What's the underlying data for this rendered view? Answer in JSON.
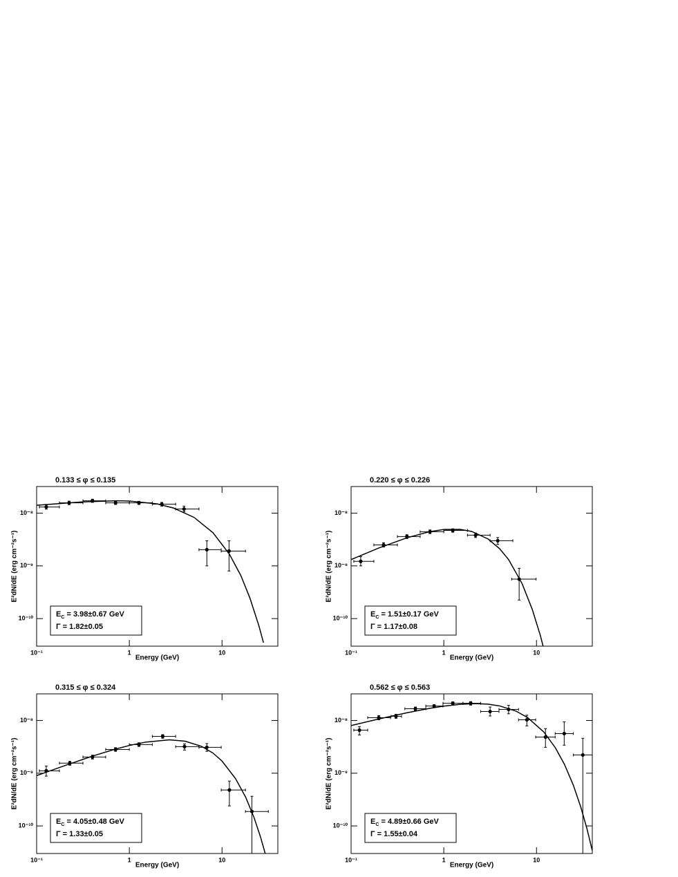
{
  "chart_data": [
    {
      "type": "scatter",
      "title": "0.133 ≤ φ ≤ 0.135",
      "x_label": "Energy (GeV)",
      "y_label": "E²dN/dE (erg cm⁻²s⁻¹)",
      "log_x": true,
      "log_y": true,
      "color": "#000000",
      "xlim": [
        0.1,
        40
      ],
      "ylim": [
        3e-11,
        3.2e-08
      ],
      "xticks": [
        {
          "value": 0.1,
          "label": "10⁻¹"
        },
        1,
        10
      ],
      "yticks": [
        {
          "value": 1e-10,
          "label": "10⁻¹⁰"
        },
        {
          "value": 1e-09,
          "label": "10⁻⁹"
        },
        {
          "value": 1e-08,
          "label": "10⁻⁸"
        }
      ],
      "x": [
        0.127,
        0.224,
        0.4,
        0.71,
        1.27,
        2.24,
        3.89,
        6.86,
        11.9
      ],
      "x_low": [
        0.107,
        0.176,
        0.316,
        0.556,
        1.0,
        1.77,
        3.16,
        5.64,
        9.8
      ],
      "x_high": [
        0.176,
        0.316,
        0.556,
        1.0,
        1.77,
        3.16,
        5.64,
        9.8,
        17.9
      ],
      "values": [
        1.31e-08,
        1.57e-08,
        1.72e-08,
        1.57e-08,
        1.57e-08,
        1.48e-08,
        1.2e-08,
        2.03e-09,
        1.91e-09
      ],
      "y_low": [
        1.19e-08,
        1.45e-08,
        1.6e-08,
        1.46e-08,
        1.46e-08,
        1.36e-08,
        1.06e-08,
        1e-09,
        8e-10
      ],
      "y_high": [
        1.43e-08,
        1.69e-08,
        1.84e-08,
        1.68e-08,
        1.68e-08,
        1.6e-08,
        1.36e-08,
        3e-09,
        3e-09
      ],
      "fit": {
        "x": [
          0.1,
          0.3,
          0.72,
          1,
          2,
          3,
          5,
          8,
          12,
          16,
          20,
          25,
          28
        ],
        "values": [
          1.41e-08,
          1.63e-08,
          1.72e-08,
          1.7e-08,
          1.5e-08,
          1.25e-08,
          8.3e-09,
          4.25e-09,
          1.67e-09,
          6.5e-10,
          2.45e-10,
          7.3e-11,
          3.5e-11
        ]
      },
      "annotation": [
        {
          "main": "E",
          "sub": "C",
          "tail": " = 3.98±0.67 GeV"
        },
        {
          "main": "Γ = 1.82±0.05"
        }
      ]
    },
    {
      "type": "scatter",
      "title": "0.220 ≤ φ ≤ 0.226",
      "x_label": "Energy (GeV)",
      "y_label": "E²dN/dE (erg cm⁻²s⁻¹)",
      "log_x": true,
      "log_y": true,
      "color": "#000000",
      "xlim": [
        0.1,
        40
      ],
      "ylim": [
        3e-11,
        3.2e-08
      ],
      "xticks": [
        {
          "value": 0.1,
          "label": "10⁻¹"
        },
        1,
        10
      ],
      "yticks": [
        {
          "value": 1e-10,
          "label": "10⁻¹⁰"
        },
        {
          "value": 1e-09,
          "label": "10⁻⁹"
        },
        {
          "value": 1e-08,
          "label": "10⁻⁸"
        }
      ],
      "x": [
        0.127,
        0.224,
        0.4,
        0.71,
        1.25,
        2.2,
        3.82,
        6.5
      ],
      "x_low": [
        0.107,
        0.176,
        0.316,
        0.556,
        1.0,
        1.8,
        3.16,
        5.4
      ],
      "x_high": [
        0.176,
        0.316,
        0.556,
        1.0,
        1.8,
        3.16,
        5.56,
        9.9
      ],
      "values": [
        1.22e-09,
        2.5e-09,
        3.6e-09,
        4.44e-09,
        4.7e-09,
        3.82e-09,
        3e-09,
        5.6e-10
      ],
      "y_low": [
        1e-09,
        2.28e-09,
        3.3e-09,
        4.1e-09,
        4.35e-09,
        3.45e-09,
        2.55e-09,
        2.25e-10
      ],
      "y_high": [
        1.5e-09,
        2.75e-09,
        3.9e-09,
        4.8e-09,
        5.05e-09,
        4.2e-09,
        3.45e-09,
        9e-10
      ],
      "fit": {
        "x": [
          0.1,
          0.2,
          0.4,
          0.7,
          1,
          1.5,
          2,
          3,
          4,
          5,
          7,
          9,
          11,
          12
        ],
        "values": [
          1.32e-09,
          2.19e-09,
          3.41e-09,
          4.45e-09,
          4.9e-09,
          4.92e-09,
          4.5e-09,
          3.24e-09,
          2.12e-09,
          1.32e-09,
          4.6e-10,
          1.5e-10,
          4.8e-11,
          2.65e-11
        ]
      },
      "annotation": [
        {
          "main": "E",
          "sub": "C",
          "tail": " = 1.51±0.17 GeV"
        },
        {
          "main": "Γ = 1.17±0.08"
        }
      ]
    },
    {
      "type": "scatter",
      "title": "0.315 ≤ φ ≤ 0.324",
      "x_label": "Energy (GeV)",
      "y_label": "E²dN/dE (erg cm⁻²s⁻¹)",
      "log_x": true,
      "log_y": true,
      "color": "#000000",
      "xlim": [
        0.1,
        40
      ],
      "ylim": [
        3e-11,
        3.2e-08
      ],
      "xticks": [
        {
          "value": 0.1,
          "label": "10⁻¹"
        },
        1,
        10
      ],
      "yticks": [
        {
          "value": 1e-10,
          "label": "10⁻¹⁰"
        },
        {
          "value": 1e-09,
          "label": "10⁻⁹"
        },
        {
          "value": 1e-08,
          "label": "10⁻⁸"
        }
      ],
      "x": [
        0.127,
        0.228,
        0.4,
        0.71,
        1.27,
        2.29,
        3.94,
        6.86,
        12.0,
        21.0
      ],
      "x_low": [
        0.107,
        0.176,
        0.316,
        0.556,
        1.0,
        1.77,
        3.16,
        5.64,
        9.8,
        17.9
      ],
      "x_high": [
        0.176,
        0.316,
        0.556,
        1.0,
        1.77,
        3.16,
        5.64,
        9.8,
        17.9,
        31.6
      ],
      "values": [
        1.11e-09,
        1.55e-09,
        2.03e-09,
        2.82e-09,
        3.49e-09,
        5e-09,
        3.19e-09,
        3.1e-09,
        4.8e-10,
        1.88e-10
      ],
      "y_low": [
        8.8e-10,
        1.42e-09,
        1.86e-09,
        2.6e-09,
        3.22e-09,
        4.6e-09,
        2.75e-09,
        2.6e-09,
        2.4e-10,
        3e-11
      ],
      "y_high": [
        1.37e-09,
        1.68e-09,
        2.2e-09,
        3.05e-09,
        3.78e-09,
        5.4e-09,
        3.6e-09,
        3.65e-09,
        7.1e-10,
        3.65e-10
      ],
      "fit": {
        "x": [
          0.1,
          0.2,
          0.4,
          0.7,
          1,
          1.5,
          2.7,
          4,
          6,
          8,
          10,
          14,
          18,
          22,
          26,
          30
        ],
        "values": [
          9e-10,
          1.39e-09,
          2.11e-09,
          2.85e-09,
          3.36e-09,
          3.89e-09,
          4.3e-09,
          4.05e-09,
          3.24e-09,
          2.41e-09,
          1.7e-09,
          7.9e-10,
          3.5e-10,
          1.49e-10,
          6.2e-11,
          2.55e-11
        ]
      },
      "annotation": [
        {
          "main": "E",
          "sub": "C",
          "tail": " = 4.05±0.48 GeV"
        },
        {
          "main": "Γ = 1.33±0.05"
        }
      ]
    },
    {
      "type": "scatter",
      "title": "0.562 ≤ φ ≤ 0.563",
      "x_label": "Energy (GeV)",
      "y_label": "E²dN/dE (erg cm⁻²s⁻¹)",
      "log_x": true,
      "log_y": true,
      "color": "#000000",
      "xlim": [
        0.1,
        40
      ],
      "ylim": [
        3e-11,
        3.2e-08
      ],
      "xticks": [
        {
          "value": 0.1,
          "label": "10⁻¹"
        },
        1,
        10
      ],
      "yticks": [
        {
          "value": 1e-10,
          "label": "10⁻¹⁰"
        },
        {
          "value": 1e-09,
          "label": "10⁻⁹"
        },
        {
          "value": 1e-08,
          "label": "10⁻⁸"
        }
      ],
      "x": [
        0.123,
        0.199,
        0.305,
        0.494,
        0.787,
        1.25,
        1.95,
        3.16,
        5.0,
        7.87,
        12.5,
        19.9,
        31.6
      ],
      "x_low": [
        0.107,
        0.151,
        0.27,
        0.38,
        0.64,
        0.98,
        1.61,
        2.5,
        3.94,
        6.4,
        9.8,
        15.9,
        25
      ],
      "x_high": [
        0.151,
        0.266,
        0.35,
        0.64,
        0.98,
        1.61,
        2.5,
        3.94,
        6.4,
        9.8,
        15.9,
        25,
        40
      ],
      "values": [
        6.56e-09,
        1.13e-08,
        1.2e-08,
        1.67e-08,
        1.88e-08,
        2.12e-08,
        2.12e-08,
        1.48e-08,
        1.62e-08,
        1.03e-08,
        4.85e-09,
        5.65e-09,
        2.22e-09
      ],
      "y_low": [
        5.3e-09,
        1.03e-08,
        1.1e-08,
        1.55e-08,
        1.76e-08,
        1.98e-08,
        1.96e-08,
        1.22e-08,
        1.34e-08,
        7.9e-09,
        3.1e-09,
        3.4e-09,
        3e-11
      ],
      "y_high": [
        7.6e-09,
        1.24e-08,
        1.31e-08,
        1.8e-08,
        2e-08,
        2.26e-08,
        2.28e-08,
        1.8e-08,
        1.94e-08,
        1.26e-08,
        7e-09,
        9.4e-09,
        4.6e-09
      ],
      "fit": {
        "x": [
          0.1,
          0.2,
          0.4,
          0.7,
          1,
          1.5,
          2.2,
          3,
          4,
          6,
          8,
          12,
          16,
          20,
          25,
          30,
          35,
          40
        ],
        "values": [
          8e-09,
          1.07e-08,
          1.4e-08,
          1.7e-08,
          1.87e-08,
          2.03e-08,
          2.09e-08,
          2.04e-08,
          1.89e-08,
          1.51e-08,
          1.14e-08,
          6.05e-09,
          3.03e-09,
          1.48e-09,
          5.9e-10,
          2.3e-10,
          8.9e-11,
          3.4e-11
        ]
      },
      "annotation": [
        {
          "main": "E",
          "sub": "C",
          "tail": " = 4.89±0.66 GeV"
        },
        {
          "main": "Γ = 1.55±0.04"
        }
      ]
    }
  ]
}
